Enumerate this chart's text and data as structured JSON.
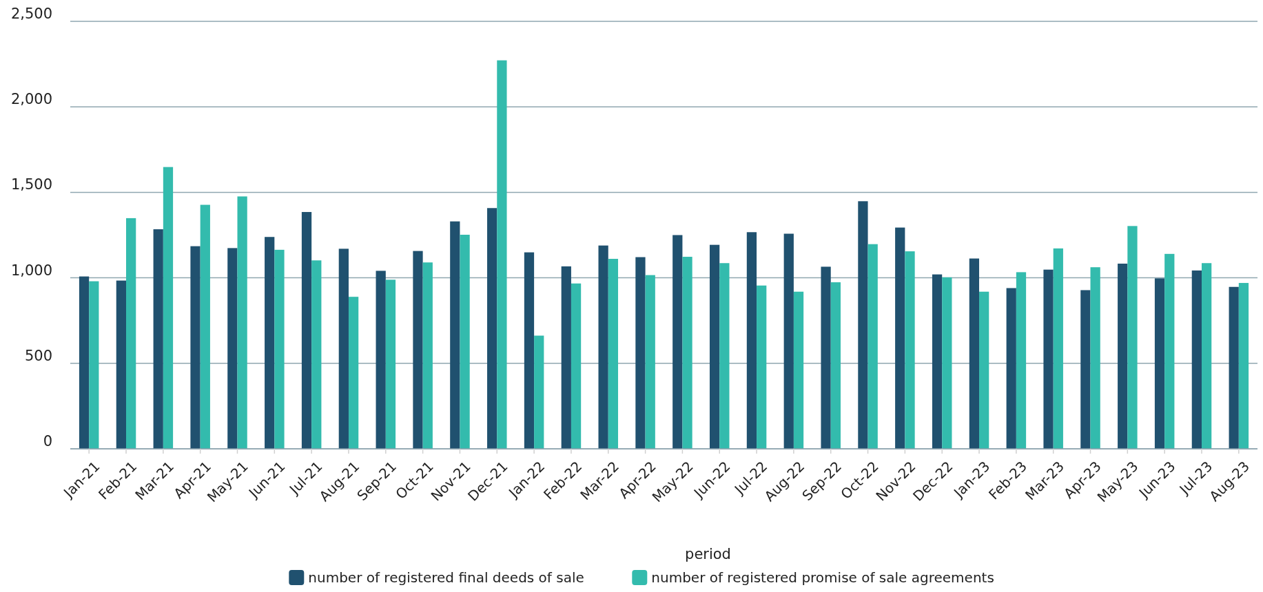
{
  "chart_data": {
    "type": "bar",
    "xlabel": "period",
    "categories": [
      "Jan-21",
      "Feb-21",
      "Mar-21",
      "Apr-21",
      "May-21",
      "Jun-21",
      "Jul-21",
      "Aug-21",
      "Sep-21",
      "Oct-21",
      "Nov-21",
      "Dec-21",
      "Jan-22",
      "Feb-22",
      "Mar-22",
      "Apr-22",
      "May-22",
      "Jun-22",
      "Jul-22",
      "Aug-22",
      "Sep-22",
      "Oct-22",
      "Nov-22",
      "Dec-22",
      "Jan-23",
      "Feb-23",
      "Mar-23",
      "Apr-23",
      "May-23",
      "Jun-23",
      "Jul-23",
      "Aug-23"
    ],
    "series": [
      {
        "name": "number of registered final deeds of sale",
        "color": "#20516f",
        "values": [
          1008,
          984,
          1284,
          1185,
          1174,
          1239,
          1385,
          1170,
          1041,
          1157,
          1330,
          1408,
          1149,
          1067,
          1189,
          1121,
          1250,
          1193,
          1267,
          1258,
          1065,
          1448,
          1294,
          1020,
          1113,
          940,
          1048,
          928,
          1083,
          997,
          1043,
          947
        ]
      },
      {
        "name": "number of registered promise of sale agreements",
        "color": "#33bbad",
        "values": [
          980,
          1349,
          1648,
          1427,
          1476,
          1164,
          1102,
          889,
          989,
          1090,
          1252,
          2272,
          662,
          967,
          1111,
          1016,
          1123,
          1086,
          955,
          919,
          974,
          1197,
          1155,
          1003,
          919,
          1033,
          1172,
          1062,
          1303,
          1140,
          1086,
          970
        ]
      }
    ],
    "ylim": [
      0,
      2500
    ],
    "yticks": [
      {
        "value": 0,
        "label": "0"
      },
      {
        "value": 500,
        "label": "500"
      },
      {
        "value": 1000,
        "label": "1,000"
      },
      {
        "value": 1500,
        "label": "1,500"
      },
      {
        "value": 2000,
        "label": "2,000"
      },
      {
        "value": 2500,
        "label": "2,500"
      }
    ],
    "grid": "y",
    "legend": "bottom"
  }
}
